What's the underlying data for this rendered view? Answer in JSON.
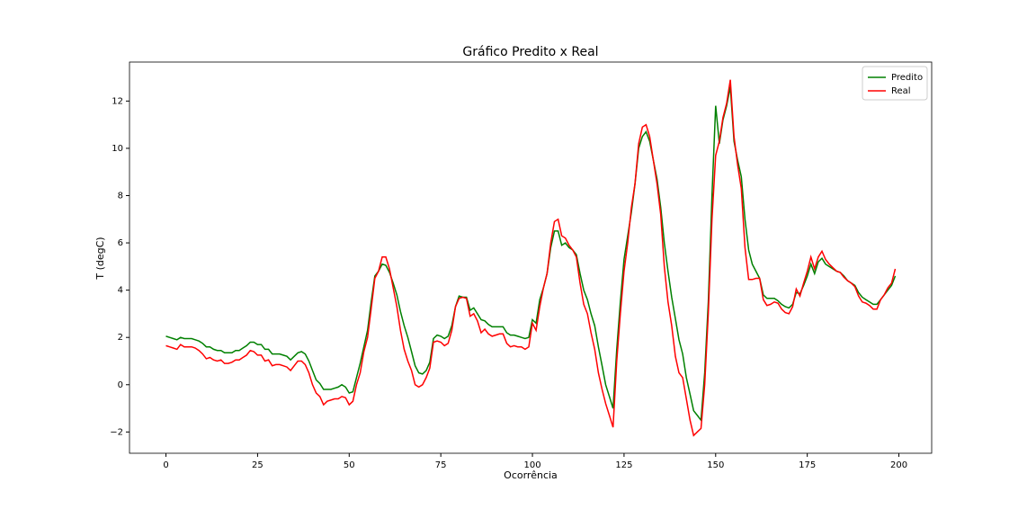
{
  "chart_data": {
    "type": "line",
    "title": "Gráfico Predito x Real",
    "x_label": "Ocorrência",
    "y_label": "T (degC)",
    "legend": "upper right",
    "xlim": [
      -9.95,
      208.95
    ],
    "ylim": [
      -2.9,
      13.65
    ],
    "xticks": [
      0,
      25,
      50,
      75,
      100,
      125,
      150,
      175,
      200
    ],
    "yticks": [
      {
        "value": -2,
        "label": "−2"
      },
      0,
      2,
      4,
      6,
      8,
      10,
      12
    ],
    "x": [
      0,
      1,
      2,
      3,
      4,
      5,
      6,
      7,
      8,
      9,
      10,
      11,
      12,
      13,
      14,
      15,
      16,
      17,
      18,
      19,
      20,
      21,
      22,
      23,
      24,
      25,
      26,
      27,
      28,
      29,
      30,
      31,
      32,
      33,
      34,
      35,
      36,
      37,
      38,
      39,
      40,
      41,
      42,
      43,
      44,
      45,
      46,
      47,
      48,
      49,
      50,
      51,
      52,
      53,
      54,
      55,
      56,
      57,
      58,
      59,
      60,
      61,
      62,
      63,
      64,
      65,
      66,
      67,
      68,
      69,
      70,
      71,
      72,
      73,
      74,
      75,
      76,
      77,
      78,
      79,
      80,
      81,
      82,
      83,
      84,
      85,
      86,
      87,
      88,
      89,
      90,
      91,
      92,
      93,
      94,
      95,
      96,
      97,
      98,
      99,
      100,
      101,
      102,
      103,
      104,
      105,
      106,
      107,
      108,
      109,
      110,
      111,
      112,
      113,
      114,
      115,
      116,
      117,
      118,
      119,
      120,
      121,
      122,
      123,
      124,
      125,
      126,
      127,
      128,
      129,
      130,
      131,
      132,
      133,
      134,
      135,
      136,
      137,
      138,
      139,
      140,
      141,
      142,
      143,
      144,
      145,
      146,
      147,
      148,
      149,
      150,
      151,
      152,
      153,
      154,
      155,
      156,
      157,
      158,
      159,
      160,
      161,
      162,
      163,
      164,
      165,
      166,
      167,
      168,
      169,
      170,
      171,
      172,
      173,
      174,
      175,
      176,
      177,
      178,
      179,
      180,
      181,
      182,
      183,
      184,
      185,
      186,
      187,
      188,
      189,
      190,
      191,
      192,
      193,
      194,
      195,
      196,
      197,
      198,
      199
    ],
    "series": [
      {
        "name": "Predito",
        "color": "#008000",
        "values": [
          2.05,
          2.0,
          1.95,
          1.9,
          2.0,
          1.95,
          1.95,
          1.95,
          1.9,
          1.85,
          1.75,
          1.6,
          1.6,
          1.5,
          1.45,
          1.45,
          1.35,
          1.35,
          1.35,
          1.45,
          1.45,
          1.55,
          1.65,
          1.8,
          1.8,
          1.7,
          1.7,
          1.5,
          1.5,
          1.3,
          1.3,
          1.3,
          1.25,
          1.2,
          1.05,
          1.2,
          1.35,
          1.4,
          1.3,
          1.0,
          0.6,
          0.2,
          0.05,
          -0.2,
          -0.2,
          -0.2,
          -0.15,
          -0.1,
          0.0,
          -0.1,
          -0.35,
          -0.3,
          0.3,
          0.9,
          1.6,
          2.3,
          3.5,
          4.6,
          4.8,
          5.1,
          5.05,
          4.75,
          4.3,
          3.8,
          3.1,
          2.5,
          2.0,
          1.4,
          0.8,
          0.5,
          0.45,
          0.6,
          0.95,
          1.95,
          2.1,
          2.05,
          1.95,
          2.05,
          2.5,
          3.3,
          3.75,
          3.7,
          3.7,
          3.15,
          3.25,
          3.0,
          2.75,
          2.7,
          2.55,
          2.45,
          2.45,
          2.45,
          2.45,
          2.2,
          2.1,
          2.1,
          2.05,
          2.0,
          1.95,
          2.0,
          2.75,
          2.6,
          3.6,
          4.1,
          4.7,
          5.8,
          6.5,
          6.5,
          5.9,
          6.0,
          5.8,
          5.7,
          5.5,
          4.7,
          4.0,
          3.6,
          3.0,
          2.5,
          1.6,
          0.8,
          0.0,
          -0.5,
          -1.0,
          1.5,
          3.5,
          5.3,
          6.3,
          7.3,
          8.5,
          10.0,
          10.5,
          10.7,
          10.3,
          9.5,
          8.7,
          7.5,
          6.0,
          4.8,
          3.7,
          2.8,
          1.9,
          1.3,
          0.3,
          -0.4,
          -1.1,
          -1.3,
          -1.5,
          0.5,
          3.5,
          8.0,
          11.8,
          10.2,
          11.2,
          11.8,
          12.6,
          10.3,
          9.5,
          8.8,
          7.0,
          5.7,
          5.1,
          4.8,
          4.5,
          3.8,
          3.65,
          3.65,
          3.65,
          3.55,
          3.4,
          3.3,
          3.25,
          3.4,
          3.9,
          3.85,
          4.2,
          4.6,
          5.1,
          4.7,
          5.2,
          5.35,
          5.1,
          5.0,
          4.9,
          4.8,
          4.75,
          4.6,
          4.4,
          4.3,
          4.2,
          3.9,
          3.7,
          3.6,
          3.5,
          3.4,
          3.4,
          3.6,
          3.8,
          4.0,
          4.2,
          4.6
        ]
      },
      {
        "name": "Real",
        "color": "#ff0000",
        "values": [
          1.65,
          1.6,
          1.55,
          1.5,
          1.7,
          1.6,
          1.6,
          1.6,
          1.55,
          1.45,
          1.3,
          1.1,
          1.15,
          1.05,
          1.0,
          1.05,
          0.9,
          0.9,
          0.95,
          1.05,
          1.05,
          1.15,
          1.25,
          1.45,
          1.4,
          1.25,
          1.25,
          1.0,
          1.05,
          0.8,
          0.85,
          0.85,
          0.8,
          0.75,
          0.6,
          0.8,
          1.0,
          1.0,
          0.85,
          0.5,
          0.0,
          -0.35,
          -0.5,
          -0.85,
          -0.7,
          -0.65,
          -0.6,
          -0.6,
          -0.5,
          -0.55,
          -0.85,
          -0.7,
          0.0,
          0.5,
          1.4,
          2.0,
          3.2,
          4.5,
          4.8,
          5.4,
          5.4,
          4.9,
          4.1,
          3.3,
          2.3,
          1.5,
          1.0,
          0.6,
          0.0,
          -0.1,
          0.0,
          0.3,
          0.7,
          1.8,
          1.85,
          1.8,
          1.65,
          1.75,
          2.3,
          3.3,
          3.65,
          3.7,
          3.65,
          2.9,
          3.0,
          2.7,
          2.2,
          2.35,
          2.15,
          2.05,
          2.1,
          2.15,
          2.15,
          1.75,
          1.6,
          1.65,
          1.6,
          1.6,
          1.5,
          1.6,
          2.6,
          2.3,
          3.3,
          4.1,
          4.7,
          6.0,
          6.9,
          7.0,
          6.3,
          6.2,
          5.9,
          5.7,
          5.4,
          4.3,
          3.4,
          3.0,
          2.2,
          1.5,
          0.5,
          -0.2,
          -0.8,
          -1.3,
          -1.8,
          1.0,
          3.0,
          4.8,
          6.0,
          7.5,
          8.5,
          10.2,
          10.9,
          11.0,
          10.5,
          9.5,
          8.5,
          7.2,
          5.0,
          3.5,
          2.5,
          1.2,
          0.5,
          0.3,
          -0.6,
          -1.5,
          -2.15,
          -2.0,
          -1.85,
          0.0,
          3.0,
          7.0,
          9.7,
          10.3,
          11.3,
          11.9,
          12.9,
          10.5,
          9.3,
          8.3,
          5.8,
          4.45,
          4.45,
          4.5,
          4.5,
          3.6,
          3.35,
          3.4,
          3.5,
          3.45,
          3.2,
          3.05,
          3.0,
          3.3,
          4.05,
          3.75,
          4.3,
          4.8,
          5.4,
          4.9,
          5.4,
          5.65,
          5.3,
          5.1,
          4.95,
          4.8,
          4.75,
          4.55,
          4.4,
          4.3,
          4.15,
          3.75,
          3.5,
          3.45,
          3.35,
          3.2,
          3.2,
          3.6,
          3.8,
          4.1,
          4.3,
          4.9
        ]
      }
    ]
  }
}
